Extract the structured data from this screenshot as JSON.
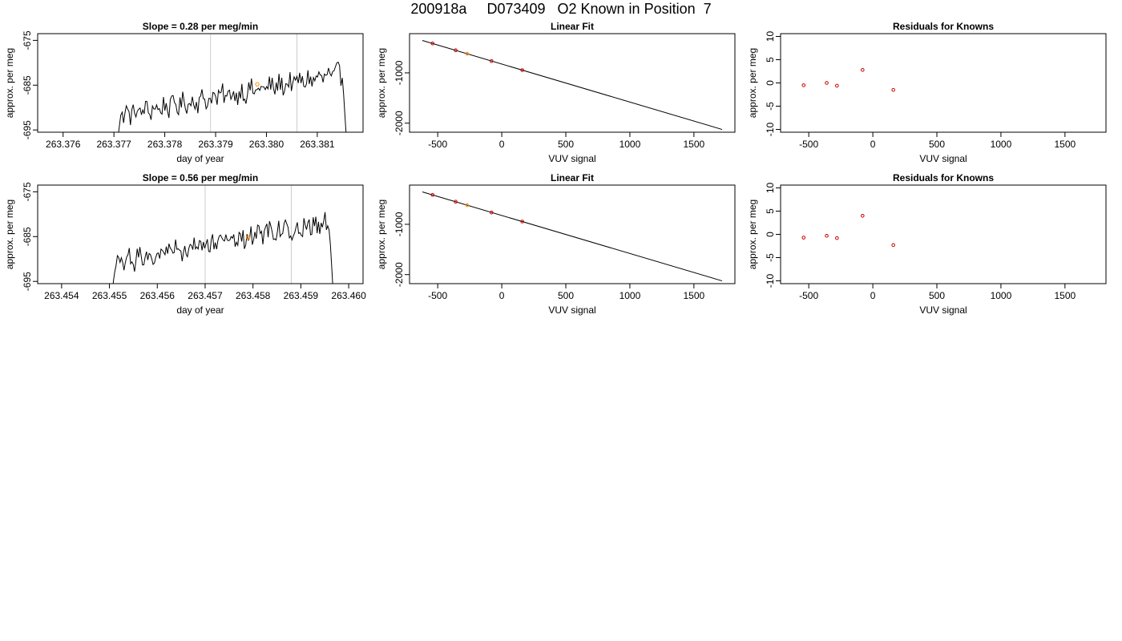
{
  "title": "200918a     D073409   O2 Known in Position  7",
  "colors": {
    "line": "#000000",
    "known_points": "#cc0000",
    "highlight": "#ff8c00",
    "marker_lines": "#cccccc"
  },
  "chart_data": [
    {
      "type": "line",
      "row": 1,
      "col": 1,
      "title": "Slope =  0.28  per meg/min",
      "xlabel": "day of year",
      "ylabel": "approx. per meg",
      "xlim": [
        263.3755,
        263.3819
      ],
      "ylim": [
        -695.5,
        -673.5
      ],
      "xticks": [
        "263.376",
        "263.377",
        "263.378",
        "263.379",
        "263.380",
        "263.381"
      ],
      "xtick_values": [
        263.376,
        263.377,
        263.378,
        263.379,
        263.38,
        263.381
      ],
      "yticks": [
        "-675",
        "-685",
        "-695"
      ],
      "ytick_values": [
        -675,
        -685,
        -695
      ],
      "vlines": [
        263.3789,
        263.3806
      ],
      "line_start": 263.377,
      "line_end": 263.3816,
      "trend_start": -692.0,
      "trend_end": -682.2,
      "drop_start": -702,
      "drop_end": -702,
      "highlight_point": {
        "x": 263.37982,
        "y": -684.8
      }
    },
    {
      "type": "line",
      "row": 1,
      "col": 2,
      "title": "Linear Fit",
      "xlabel": "VUV signal",
      "ylabel": "approx. per meg",
      "xlim": [
        -720,
        1820
      ],
      "ylim": [
        -2180,
        -220
      ],
      "xticks": [
        "-500",
        "0",
        "500",
        "1000",
        "1500"
      ],
      "xtick_values": [
        -500,
        0,
        500,
        1000,
        1500
      ],
      "yticks": [
        "-1000",
        "-2000"
      ],
      "ytick_values": [
        -1000,
        -2000
      ],
      "fit_line": {
        "x": [
          -620,
          1720
        ],
        "y": [
          -355,
          -2125
        ]
      },
      "points": [
        {
          "x": -540,
          "y": -415,
          "highlight": false
        },
        {
          "x": -360,
          "y": -550,
          "highlight": false
        },
        {
          "x": -270,
          "y": -620,
          "highlight": true
        },
        {
          "x": -80,
          "y": -765,
          "highlight": false
        },
        {
          "x": 160,
          "y": -945,
          "highlight": false
        }
      ]
    },
    {
      "type": "scatter",
      "row": 1,
      "col": 3,
      "title": "Residuals for Knowns",
      "xlabel": "VUV signal",
      "ylabel": "approx. per meg",
      "xlim": [
        -720,
        1820
      ],
      "ylim": [
        -10.6,
        10.6
      ],
      "xticks": [
        "-500",
        "0",
        "500",
        "1000",
        "1500"
      ],
      "xtick_values": [
        -500,
        0,
        500,
        1000,
        1500
      ],
      "yticks": [
        "10",
        "5",
        "0",
        "-5",
        "-10"
      ],
      "ytick_values": [
        10,
        5,
        0,
        -5,
        -10
      ],
      "points": [
        {
          "x": -540,
          "y": -0.5
        },
        {
          "x": -360,
          "y": 0.0
        },
        {
          "x": -280,
          "y": -0.6
        },
        {
          "x": -80,
          "y": 2.8
        },
        {
          "x": 160,
          "y": -1.5
        }
      ]
    },
    {
      "type": "line",
      "row": 2,
      "col": 1,
      "title": "Slope =  0.56  per meg/min",
      "xlabel": "day of year",
      "ylabel": "approx. per meg",
      "xlim": [
        263.4535,
        263.4603
      ],
      "ylim": [
        -695.5,
        -673.5
      ],
      "xticks": [
        "263.454",
        "263.455",
        "263.456",
        "263.457",
        "263.458",
        "263.459",
        "263.460"
      ],
      "xtick_values": [
        263.454,
        263.455,
        263.456,
        263.457,
        263.458,
        263.459,
        263.46
      ],
      "yticks": [
        "-675",
        "-685",
        "-695"
      ],
      "ytick_values": [
        -675,
        -685,
        -695
      ],
      "vlines": [
        263.457,
        263.4588
      ],
      "line_start": 263.455,
      "line_end": 263.4597,
      "trend_start": -691.0,
      "trend_end": -681.5,
      "drop_start": -702,
      "drop_end": -702,
      "highlight_point": {
        "x": 263.4579,
        "y": -685.2
      }
    },
    {
      "type": "line",
      "row": 2,
      "col": 2,
      "title": "Linear Fit",
      "xlabel": "VUV signal",
      "ylabel": "approx. per meg",
      "xlim": [
        -720,
        1820
      ],
      "ylim": [
        -2180,
        -220
      ],
      "xticks": [
        "-500",
        "0",
        "500",
        "1000",
        "1500"
      ],
      "xtick_values": [
        -500,
        0,
        500,
        1000,
        1500
      ],
      "yticks": [
        "-1000",
        "-2000"
      ],
      "ytick_values": [
        -1000,
        -2000
      ],
      "fit_line": {
        "x": [
          -620,
          1720
        ],
        "y": [
          -355,
          -2125
        ]
      },
      "points": [
        {
          "x": -540,
          "y": -415,
          "highlight": false
        },
        {
          "x": -360,
          "y": -550,
          "highlight": false
        },
        {
          "x": -270,
          "y": -620,
          "highlight": true
        },
        {
          "x": -80,
          "y": -765,
          "highlight": false
        },
        {
          "x": 160,
          "y": -945,
          "highlight": false
        }
      ]
    },
    {
      "type": "scatter",
      "row": 2,
      "col": 3,
      "title": "Residuals for Knowns",
      "xlabel": "VUV signal",
      "ylabel": "approx. per meg",
      "xlim": [
        -720,
        1820
      ],
      "ylim": [
        -10.6,
        10.6
      ],
      "xticks": [
        "-500",
        "0",
        "500",
        "1000",
        "1500"
      ],
      "xtick_values": [
        -500,
        0,
        500,
        1000,
        1500
      ],
      "yticks": [
        "10",
        "5",
        "0",
        "-5",
        "-10"
      ],
      "ytick_values": [
        10,
        5,
        0,
        -5,
        -10
      ],
      "points": [
        {
          "x": -540,
          "y": -0.7
        },
        {
          "x": -360,
          "y": -0.3
        },
        {
          "x": -280,
          "y": -0.8
        },
        {
          "x": -80,
          "y": 4.0
        },
        {
          "x": 160,
          "y": -2.3
        }
      ]
    }
  ]
}
